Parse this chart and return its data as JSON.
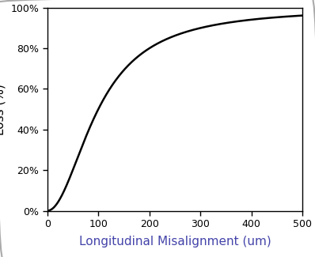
{
  "z_R": 100.0,
  "x_min": 0,
  "x_max": 500,
  "y_min": 0.0,
  "y_max": 1.0,
  "xlabel": "Longitudinal Misalignment (um)",
  "ylabel": "Loss (%)",
  "xlabel_color": "#4444aa",
  "ylabel_color": "#000000",
  "line_color": "#000000",
  "line_width": 1.8,
  "background_color": "#ffffff",
  "xticks": [
    0,
    100,
    200,
    300,
    400,
    500
  ],
  "yticks": [
    0.0,
    0.2,
    0.4,
    0.6,
    0.8,
    1.0
  ],
  "ytick_labels": [
    "0%",
    "20%",
    "40%",
    "60%",
    "80%",
    "100%"
  ],
  "xtick_labels": [
    "0",
    "100",
    "200",
    "300",
    "400",
    "500"
  ],
  "tick_fontsize": 9,
  "label_fontsize": 11
}
